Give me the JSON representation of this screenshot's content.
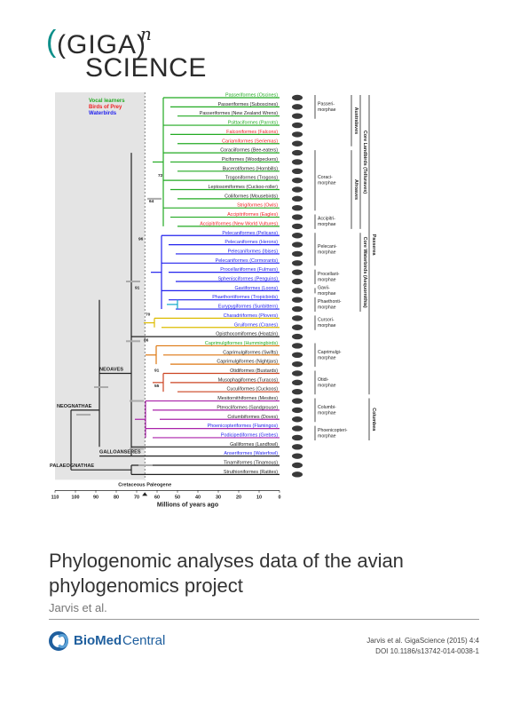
{
  "logo": {
    "text_left": "(GIGA)",
    "superscript": "n",
    "text_bottom": "SCIENCE"
  },
  "figure": {
    "legend": [
      {
        "label": "Vocal learners",
        "color": "#22aa22"
      },
      {
        "label": "Birds of Prey",
        "color": "#ee2222"
      },
      {
        "label": "Waterbirds",
        "color": "#2222ee"
      }
    ],
    "taxa": [
      {
        "label": "Passeriformes (Oscines)",
        "color": "#22aa22"
      },
      {
        "label": "Passeriformes (Suboscines)",
        "color": "#222222"
      },
      {
        "label": "Passeriformes (New Zealand Wrens)",
        "color": "#222222"
      },
      {
        "label": "Psittaciformes (Parrots)",
        "color": "#22aa22"
      },
      {
        "label": "Falconiformes (Falcons)",
        "color": "#ee2222"
      },
      {
        "label": "Cariamiformes (Seriemas)",
        "color": "#ee2222"
      },
      {
        "label": "Coraciiformes (Bee-eaters)",
        "color": "#222222"
      },
      {
        "label": "Piciformes (Woodpeckers)",
        "color": "#222222"
      },
      {
        "label": "Bucerotiformes (Hornbills)",
        "color": "#222222"
      },
      {
        "label": "Trogoniformes (Trogons)",
        "color": "#222222"
      },
      {
        "label": "Leptosomiformes (Cuckoo-roller)",
        "color": "#222222"
      },
      {
        "label": "Coliiformes (Mousebirds)",
        "color": "#222222"
      },
      {
        "label": "Strigiformes (Owls)",
        "color": "#ee2222"
      },
      {
        "label": "Accipitriformes (Eagles)",
        "color": "#ee2222"
      },
      {
        "label": "Accipitriformes (New World Vultures)",
        "color": "#ee2222"
      },
      {
        "label": "Pelecaniformes (Pelicans)",
        "color": "#2222ee"
      },
      {
        "label": "Pelecaniformes (Herons)",
        "color": "#2222ee"
      },
      {
        "label": "Pelecaniformes (Ibises)",
        "color": "#2222ee"
      },
      {
        "label": "Pelecaniformes (Cormorants)",
        "color": "#2222ee"
      },
      {
        "label": "Procellariiformes (Fulmars)",
        "color": "#2222ee"
      },
      {
        "label": "Sphenisciformes (Penguins)",
        "color": "#2222ee"
      },
      {
        "label": "Gaviiformes (Loons)",
        "color": "#2222ee"
      },
      {
        "label": "Phaethontiformes (Tropicbirds)",
        "color": "#2222ee"
      },
      {
        "label": "Eurypygiformes (Sunbittern)",
        "color": "#2222ee"
      },
      {
        "label": "Charadriiformes (Plovers)",
        "color": "#2222ee"
      },
      {
        "label": "Gruiformes (Cranes)",
        "color": "#2222ee"
      },
      {
        "label": "Opisthocomiformes (Hoatzin)",
        "color": "#222222"
      },
      {
        "label": "Caprimulgiformes (Hummingbirds)",
        "color": "#22aa22"
      },
      {
        "label": "Caprimulgiformes (Swifts)",
        "color": "#222222"
      },
      {
        "label": "Caprimulgiformes (Nightjars)",
        "color": "#222222"
      },
      {
        "label": "Otidiformes (Bustards)",
        "color": "#222222"
      },
      {
        "label": "Musophagiformes (Turacos)",
        "color": "#222222"
      },
      {
        "label": "Cuculiformes (Cuckoos)",
        "color": "#222222"
      },
      {
        "label": "Mesitornithiformes (Mesites)",
        "color": "#222222"
      },
      {
        "label": "Pterocliformes (Sandgrouse)",
        "color": "#222222"
      },
      {
        "label": "Columbiformes (Doves)",
        "color": "#222222"
      },
      {
        "label": "Phoenicopteriformes (Flamingos)",
        "color": "#2222ee"
      },
      {
        "label": "Podicipediformes (Grebes)",
        "color": "#2222ee"
      },
      {
        "label": "Galliformes (Landfowl)",
        "color": "#222222"
      },
      {
        "label": "Anseriformes (Waterfowl)",
        "color": "#2222ee"
      },
      {
        "label": "Tinamiformes (Tinamous)",
        "color": "#222222"
      },
      {
        "label": "Struthioniformes (Ratites)",
        "color": "#222222"
      }
    ],
    "clade_groups": [
      {
        "label": "Passeri-\nmorphae",
        "from": 0,
        "to": 2
      },
      {
        "label": "Coraci-\nmorphae",
        "from": 6,
        "to": 12
      },
      {
        "label": "Accipitri-\nmorphae",
        "from": 13,
        "to": 14
      },
      {
        "label": "Pelecani-\nmorphae",
        "from": 15,
        "to": 18
      },
      {
        "label": "Procellarii-\nmorphae",
        "from": 19,
        "to": 20
      },
      {
        "label": "Gavii-\nmorphae",
        "from": 21,
        "to": 21
      },
      {
        "label": "Phaethonti-\nmorphae",
        "from": 22,
        "to": 23
      },
      {
        "label": "Cursori-\nmorphae",
        "from": 24,
        "to": 25
      },
      {
        "label": "Caprimulgi-\nmorphae",
        "from": 27,
        "to": 29
      },
      {
        "label": "Otidi-\nmorphae",
        "from": 30,
        "to": 32
      },
      {
        "label": "Columbi-\nmorphae",
        "from": 33,
        "to": 35
      },
      {
        "label": "Phoenicopteri-\nmorphae",
        "from": 36,
        "to": 37
      }
    ],
    "vertical_labels": [
      {
        "label": "Australaves",
        "from": 0,
        "to": 5
      },
      {
        "label": "Afroaves",
        "from": 6,
        "to": 14
      },
      {
        "label": "Core Landbirds (Telluraves)",
        "from": 0,
        "to": 14
      },
      {
        "label": "Core Waterbirds (Aequornithia)",
        "from": 15,
        "to": 23
      },
      {
        "label": "Passerea",
        "from": 0,
        "to": 32
      },
      {
        "label": "Columbea",
        "from": 33,
        "to": 37
      }
    ],
    "node_labels": [
      "NEOAVES",
      "NEOGNATHAE",
      "GALLOANSERES",
      "PALAEOGNATHAE"
    ],
    "support_values": [
      "72",
      "64",
      "96",
      "91",
      "70",
      "86",
      "91",
      "55"
    ],
    "axis": {
      "ticks": [
        "110",
        "100",
        "90",
        "80",
        "70",
        "60",
        "50",
        "40",
        "30",
        "20",
        "10",
        "0"
      ],
      "title": "Millions of years ago",
      "boundary_label": "Cretaceous Paleogene"
    }
  },
  "paper": {
    "title": "Phylogenomic analyses data of the avian phylogenomics project",
    "authors": "Jarvis et al."
  },
  "footer": {
    "publisher_bold": "BioMed",
    "publisher_light": "Central",
    "citation": "Jarvis et al. GigaScience (2015) 4:4",
    "doi": "DOI 10.1186/s13742-014-0038-1"
  }
}
